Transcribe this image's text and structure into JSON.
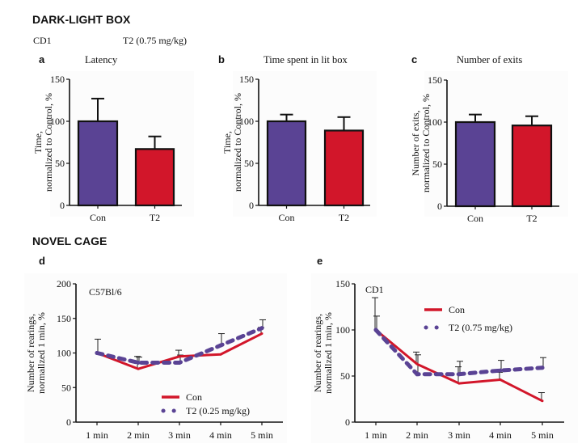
{
  "colors": {
    "con": "#5a4394",
    "t2": "#d2162a",
    "axis": "#111111",
    "error": "#222222",
    "panel_bg": "#fcfcfc"
  },
  "sections": {
    "dark_light": {
      "title": "DARK-LIGHT BOX",
      "strain": "CD1",
      "dose": "T2 (0.75 mg/kg)"
    },
    "novel_cage": {
      "title": "NOVEL CAGE"
    }
  },
  "panels": {
    "a": {
      "letter": "a",
      "title": "Latency"
    },
    "b": {
      "letter": "b",
      "title": "Time spent in lit box"
    },
    "c": {
      "letter": "c",
      "title": "Number of exits"
    },
    "d": {
      "letter": "d"
    },
    "e": {
      "letter": "e"
    }
  },
  "chart_data": [
    {
      "id": "a",
      "type": "bar",
      "title": "Latency",
      "categories": [
        "Con",
        "T2"
      ],
      "values": [
        100,
        67
      ],
      "error_upper": [
        127,
        82
      ],
      "ylabel": [
        "Time,",
        "normalized to Control, %"
      ],
      "ylim": [
        0,
        150
      ],
      "yticks": [
        0,
        50,
        100,
        150
      ],
      "grid": false
    },
    {
      "id": "b",
      "type": "bar",
      "title": "Time spent in lit box",
      "categories": [
        "Con",
        "T2"
      ],
      "values": [
        100,
        89
      ],
      "error_upper": [
        108,
        105
      ],
      "ylabel": [
        "Time,",
        "normalized to Control, %"
      ],
      "ylim": [
        0,
        150
      ],
      "yticks": [
        0,
        50,
        100,
        150
      ],
      "grid": false
    },
    {
      "id": "c",
      "type": "bar",
      "title": "Number of exits",
      "categories": [
        "Con",
        "T2"
      ],
      "values": [
        100,
        96
      ],
      "error_upper": [
        109,
        107
      ],
      "ylabel": [
        "Number of exits,",
        "normalized to Control, %"
      ],
      "ylim": [
        0,
        150
      ],
      "yticks": [
        0,
        50,
        100,
        150
      ],
      "grid": false
    },
    {
      "id": "d",
      "type": "line",
      "annotation": "C57Bl/6",
      "x": [
        "1 min",
        "2 min",
        "3 min",
        "4 min",
        "5 min"
      ],
      "series": [
        {
          "name": "Con",
          "values": [
            100,
            77,
            95,
            98,
            128
          ],
          "error": [
            [
              100,
              100
            ],
            [
              77,
              95
            ],
            [
              95,
              104
            ],
            [
              98,
              98
            ],
            [
              128,
              137
            ]
          ]
        },
        {
          "name": "T2 (0.25 mg/kg)",
          "values": [
            100,
            86,
            86,
            111,
            136
          ],
          "error": [
            [
              100,
              120
            ],
            [
              86,
              94
            ],
            [
              86,
              97
            ],
            [
              111,
              128
            ],
            [
              136,
              148
            ]
          ]
        }
      ],
      "ylabel": [
        "Number of rearings,",
        "normallzed 1 min, %"
      ],
      "ylim": [
        0,
        200
      ],
      "yticks": [
        0,
        50,
        100,
        150,
        200
      ],
      "legend": "bottom-right",
      "grid": false
    },
    {
      "id": "e",
      "type": "line",
      "annotation": "CD1",
      "x": [
        "1 min",
        "2 min",
        "3 min",
        "4 min",
        "5 min"
      ],
      "series": [
        {
          "name": "Con",
          "values": [
            100,
            63,
            42,
            46,
            23
          ],
          "error": [
            [
              100,
              135
            ],
            [
              63,
              76
            ],
            [
              42,
              60
            ],
            [
              46,
              54
            ],
            [
              23,
              32
            ]
          ]
        },
        {
          "name": "T2 (0.75 mg/kg)",
          "values": [
            100,
            52,
            52,
            56,
            59
          ],
          "error": [
            [
              100,
              115
            ],
            [
              52,
              73
            ],
            [
              52,
              66
            ],
            [
              56,
              67
            ],
            [
              59,
              70
            ]
          ]
        }
      ],
      "ylabel": [
        "Number of rearings,",
        "normallzed 1 min, %"
      ],
      "ylim": [
        0,
        150
      ],
      "yticks": [
        0,
        50,
        100,
        150
      ],
      "legend": "top-right",
      "grid": false
    }
  ]
}
